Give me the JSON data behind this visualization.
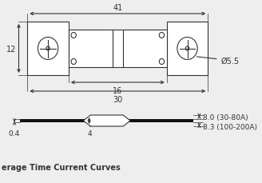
{
  "bg_color": "#eeeeee",
  "line_color": "#333333",
  "title_bottom": "erage Time Current Curves",
  "dim_41": "41",
  "dim_12": "12",
  "dim_16": "16",
  "dim_30": "30",
  "dim_55": "Ø5.5",
  "dim_04": "0.4",
  "dim_4": "4",
  "dim_80": "8.0 (30-80A)",
  "dim_83": "8.3 (100-200A)"
}
